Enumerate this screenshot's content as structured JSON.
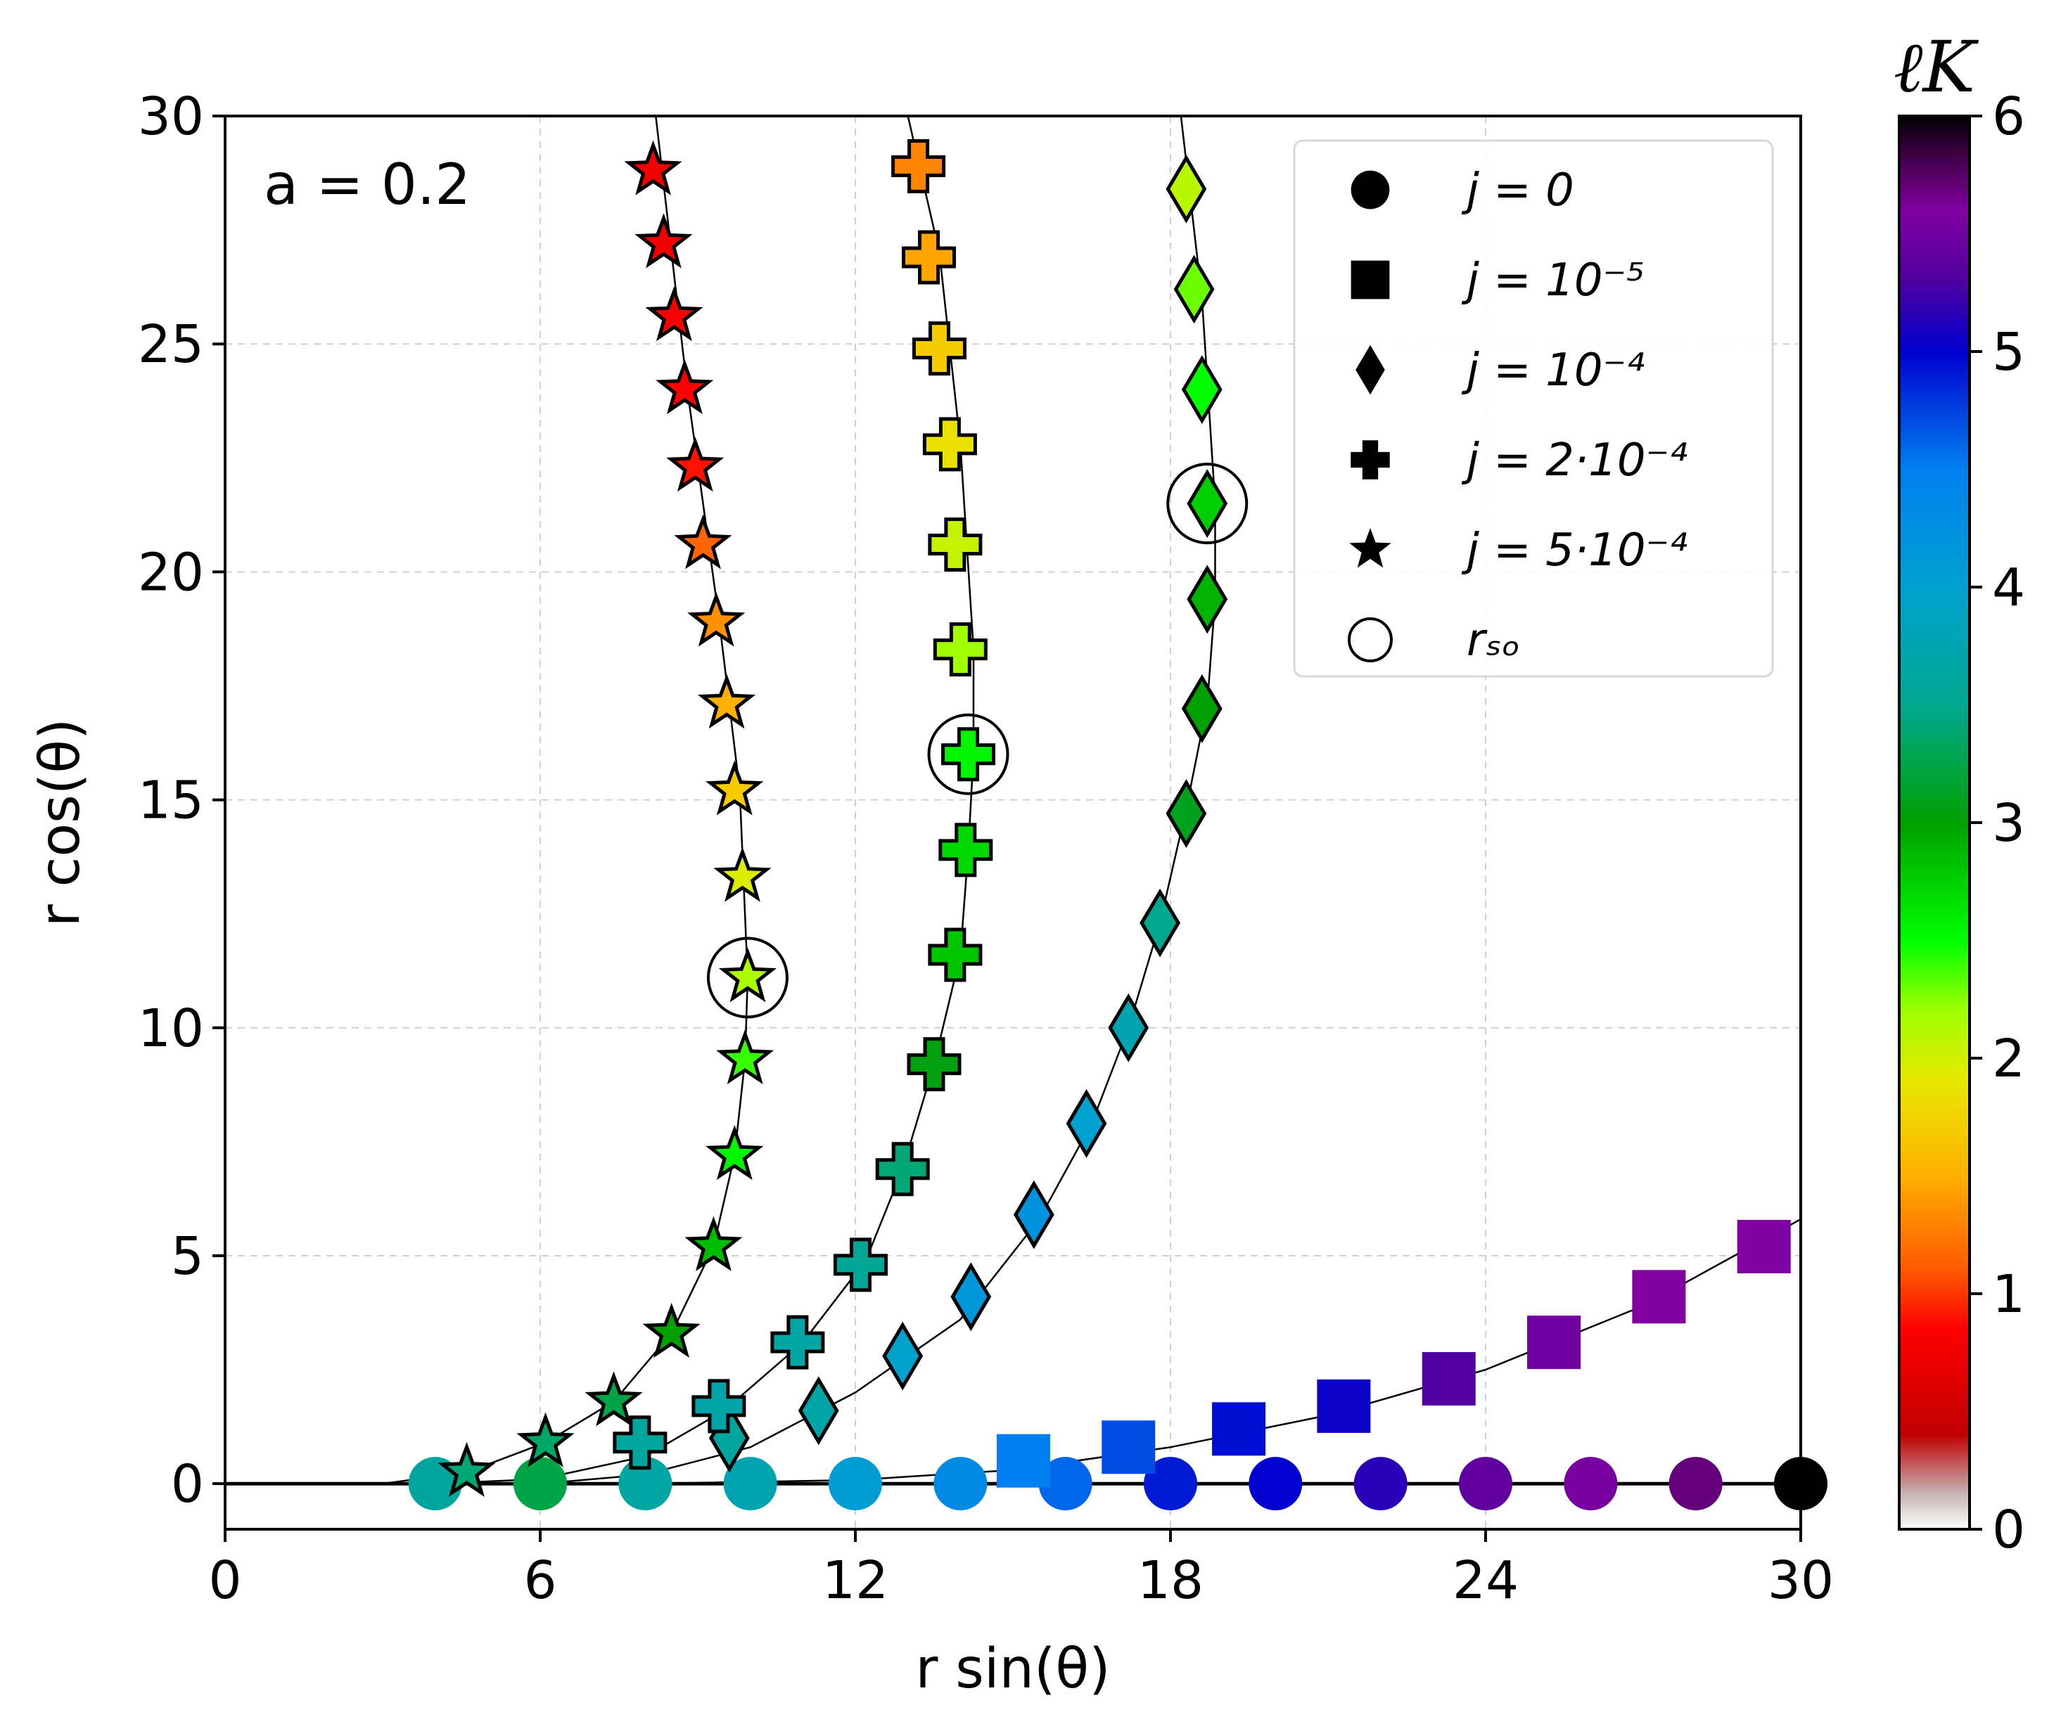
{
  "chart_data": {
    "type": "scatter",
    "xlabel": "r sin(θ)",
    "ylabel": "r cos(θ)",
    "xlim": [
      0,
      30
    ],
    "ylim": [
      -1,
      30
    ],
    "xticks": [
      0,
      6,
      12,
      18,
      24,
      30
    ],
    "yticks": [
      0,
      5,
      10,
      15,
      20,
      25,
      30
    ],
    "grid": true,
    "annotation": "a = 0.2",
    "legend_position": "top-right",
    "colorbar": {
      "label": "ℓK",
      "range": [
        0,
        6
      ],
      "ticks": [
        0,
        1,
        2,
        3,
        4,
        5,
        6
      ],
      "stops": [
        {
          "v": 0.0,
          "c": "#ffffff"
        },
        {
          "v": 0.15,
          "c": "#c8b4b4"
        },
        {
          "v": 0.4,
          "c": "#c00000"
        },
        {
          "v": 0.85,
          "c": "#ff0000"
        },
        {
          "v": 1.1,
          "c": "#ff5a00"
        },
        {
          "v": 1.5,
          "c": "#ffb000"
        },
        {
          "v": 1.9,
          "c": "#e8e800"
        },
        {
          "v": 2.2,
          "c": "#a0ff00"
        },
        {
          "v": 2.5,
          "c": "#00ff00"
        },
        {
          "v": 3.0,
          "c": "#00a000"
        },
        {
          "v": 3.5,
          "c": "#00a890"
        },
        {
          "v": 4.0,
          "c": "#00a0d0"
        },
        {
          "v": 4.5,
          "c": "#0080f0"
        },
        {
          "v": 5.0,
          "c": "#0000d0"
        },
        {
          "v": 5.3,
          "c": "#5000a0"
        },
        {
          "v": 5.6,
          "c": "#8000a0"
        },
        {
          "v": 5.85,
          "c": "#3a0040"
        },
        {
          "v": 6.0,
          "c": "#000000"
        }
      ]
    },
    "legend": [
      {
        "marker": "circle",
        "label": "j = 0"
      },
      {
        "marker": "square",
        "label": "j = 10⁻⁵"
      },
      {
        "marker": "diamond",
        "label": "j = 10⁻⁴"
      },
      {
        "marker": "plus",
        "label": "j = 2·10⁻⁴"
      },
      {
        "marker": "star",
        "label": "j = 5·10⁻⁴"
      },
      {
        "marker": "open-circle",
        "label": "rₛₒ"
      }
    ],
    "curves": [
      {
        "name": "j = 0 curve",
        "x": [
          0,
          30
        ],
        "y": [
          0,
          0
        ]
      },
      {
        "name": "j = 10⁻⁵ curve",
        "x": [
          0,
          8,
          12,
          15,
          18,
          21,
          24,
          27,
          30
        ],
        "y": [
          0,
          0,
          0.08,
          0.3,
          0.8,
          1.5,
          2.5,
          3.9,
          5.8
        ]
      },
      {
        "name": "j = 10⁻⁴ curve",
        "x": [
          0,
          6,
          8,
          10,
          12,
          14,
          15.5,
          16.5,
          17.2,
          17.8,
          18.3,
          18.7,
          18.85,
          18.85,
          18.6,
          18.2
        ],
        "y": [
          0,
          0,
          0.2,
          0.8,
          2.0,
          3.6,
          5.8,
          7.9,
          10.0,
          12.3,
          14.8,
          17.1,
          19.4,
          21.5,
          26.0,
          30.0
        ]
      },
      {
        "name": "j = 2·10⁻⁴ curve",
        "x": [
          0,
          4,
          6,
          8,
          9.5,
          11,
          12.2,
          12.9,
          13.5,
          14.0,
          14.15,
          14.25,
          14.25,
          14.0,
          13.6,
          13.0
        ],
        "y": [
          0,
          0,
          0.1,
          0.6,
          1.6,
          3.1,
          4.9,
          6.9,
          9.2,
          11.6,
          13.9,
          16.0,
          18.3,
          22.8,
          27.0,
          30.0
        ]
      },
      {
        "name": "j = 5·10⁻⁴ curve",
        "x": [
          0,
          3,
          4.6,
          6.1,
          7.4,
          8.5,
          9.3,
          9.7,
          9.9,
          9.95,
          9.8,
          9.4,
          8.8,
          8.2
        ],
        "y": [
          0,
          0,
          0.25,
          0.9,
          1.8,
          3.3,
          5.2,
          7.2,
          9.3,
          11.1,
          15.2,
          19.0,
          24.0,
          30.0
        ]
      }
    ],
    "series": [
      {
        "name": "j = 0",
        "marker": "circle",
        "points": [
          {
            "x": 4.0,
            "y": 0,
            "l": 3.6
          },
          {
            "x": 6.0,
            "y": 0,
            "l": 3.25
          },
          {
            "x": 8.0,
            "y": 0,
            "l": 3.65
          },
          {
            "x": 10.0,
            "y": 0,
            "l": 3.75
          },
          {
            "x": 12.0,
            "y": 0,
            "l": 4.05
          },
          {
            "x": 14.0,
            "y": 0,
            "l": 4.35
          },
          {
            "x": 16.0,
            "y": 0,
            "l": 4.6
          },
          {
            "x": 18.0,
            "y": 0,
            "l": 4.9
          },
          {
            "x": 20.0,
            "y": 0,
            "l": 5.0
          },
          {
            "x": 22.0,
            "y": 0,
            "l": 5.15
          },
          {
            "x": 24.0,
            "y": 0,
            "l": 5.4
          },
          {
            "x": 26.0,
            "y": 0,
            "l": 5.55
          },
          {
            "x": 28.0,
            "y": 0,
            "l": 5.7
          },
          {
            "x": 30.0,
            "y": 0,
            "l": 6.0
          }
        ]
      },
      {
        "name": "j = 10⁻⁵",
        "marker": "square",
        "points": [
          {
            "x": 15.2,
            "y": 0.5,
            "l": 4.5
          },
          {
            "x": 17.2,
            "y": 0.8,
            "l": 4.7
          },
          {
            "x": 19.3,
            "y": 1.2,
            "l": 4.95
          },
          {
            "x": 21.3,
            "y": 1.7,
            "l": 5.05
          },
          {
            "x": 23.3,
            "y": 2.3,
            "l": 5.3
          },
          {
            "x": 25.3,
            "y": 3.1,
            "l": 5.5
          },
          {
            "x": 27.3,
            "y": 4.1,
            "l": 5.6
          },
          {
            "x": 29.3,
            "y": 5.2,
            "l": 5.6
          }
        ]
      },
      {
        "name": "j = 10⁻⁴",
        "marker": "diamond",
        "points": [
          {
            "x": 9.6,
            "y": 1.0,
            "l": 3.6
          },
          {
            "x": 11.3,
            "y": 1.6,
            "l": 3.7
          },
          {
            "x": 12.9,
            "y": 2.8,
            "l": 3.95
          },
          {
            "x": 14.2,
            "y": 4.1,
            "l": 4.15
          },
          {
            "x": 15.4,
            "y": 5.9,
            "l": 4.2
          },
          {
            "x": 16.4,
            "y": 7.9,
            "l": 4.0
          },
          {
            "x": 17.2,
            "y": 10.0,
            "l": 3.75
          },
          {
            "x": 17.8,
            "y": 12.3,
            "l": 3.5
          },
          {
            "x": 18.3,
            "y": 14.7,
            "l": 3.1
          },
          {
            "x": 18.6,
            "y": 17.0,
            "l": 3.0
          },
          {
            "x": 18.7,
            "y": 19.4,
            "l": 2.9
          },
          {
            "x": 18.7,
            "y": 21.5,
            "l": 2.75
          },
          {
            "x": 18.6,
            "y": 24.0,
            "l": 2.5
          },
          {
            "x": 18.45,
            "y": 26.2,
            "l": 2.3
          },
          {
            "x": 18.3,
            "y": 28.4,
            "l": 2.1
          }
        ]
      },
      {
        "name": "j = 2·10⁻⁴",
        "marker": "plus",
        "points": [
          {
            "x": 7.9,
            "y": 0.9,
            "l": 3.6
          },
          {
            "x": 9.4,
            "y": 1.7,
            "l": 3.7
          },
          {
            "x": 10.9,
            "y": 3.1,
            "l": 3.65
          },
          {
            "x": 12.1,
            "y": 4.8,
            "l": 3.55
          },
          {
            "x": 12.9,
            "y": 6.9,
            "l": 3.4
          },
          {
            "x": 13.5,
            "y": 9.2,
            "l": 3.05
          },
          {
            "x": 13.9,
            "y": 11.6,
            "l": 2.8
          },
          {
            "x": 14.1,
            "y": 13.9,
            "l": 2.7
          },
          {
            "x": 14.15,
            "y": 16.0,
            "l": 2.55
          },
          {
            "x": 14.0,
            "y": 18.3,
            "l": 2.2
          },
          {
            "x": 13.9,
            "y": 20.6,
            "l": 2.05
          },
          {
            "x": 13.8,
            "y": 22.8,
            "l": 1.85
          },
          {
            "x": 13.6,
            "y": 24.9,
            "l": 1.7
          },
          {
            "x": 13.4,
            "y": 26.9,
            "l": 1.45
          },
          {
            "x": 13.2,
            "y": 28.9,
            "l": 1.3
          }
        ]
      },
      {
        "name": "j = 5·10⁻⁴",
        "marker": "star",
        "points": [
          {
            "x": 4.6,
            "y": 0.25,
            "l": 3.4
          },
          {
            "x": 6.1,
            "y": 0.9,
            "l": 3.35
          },
          {
            "x": 7.4,
            "y": 1.8,
            "l": 3.25
          },
          {
            "x": 8.5,
            "y": 3.3,
            "l": 3.0
          },
          {
            "x": 9.3,
            "y": 5.2,
            "l": 2.85
          },
          {
            "x": 9.7,
            "y": 7.2,
            "l": 2.55
          },
          {
            "x": 9.9,
            "y": 9.3,
            "l": 2.4
          },
          {
            "x": 9.95,
            "y": 11.1,
            "l": 2.15
          },
          {
            "x": 9.85,
            "y": 13.3,
            "l": 1.95
          },
          {
            "x": 9.7,
            "y": 15.2,
            "l": 1.7
          },
          {
            "x": 9.55,
            "y": 17.1,
            "l": 1.5
          },
          {
            "x": 9.35,
            "y": 18.9,
            "l": 1.35
          },
          {
            "x": 9.1,
            "y": 20.6,
            "l": 1.15
          },
          {
            "x": 8.95,
            "y": 22.3,
            "l": 0.9
          },
          {
            "x": 8.75,
            "y": 24.0,
            "l": 0.85
          },
          {
            "x": 8.55,
            "y": 25.6,
            "l": 0.8
          },
          {
            "x": 8.35,
            "y": 27.2,
            "l": 0.75
          },
          {
            "x": 8.15,
            "y": 28.8,
            "l": 0.75
          }
        ]
      }
    ],
    "rso_markers": [
      {
        "series": "j = 5·10⁻⁴",
        "x": 9.95,
        "y": 11.1
      },
      {
        "series": "j = 2·10⁻⁴",
        "x": 14.15,
        "y": 16.0
      },
      {
        "series": "j = 10⁻⁴",
        "x": 18.7,
        "y": 21.5
      }
    ]
  }
}
